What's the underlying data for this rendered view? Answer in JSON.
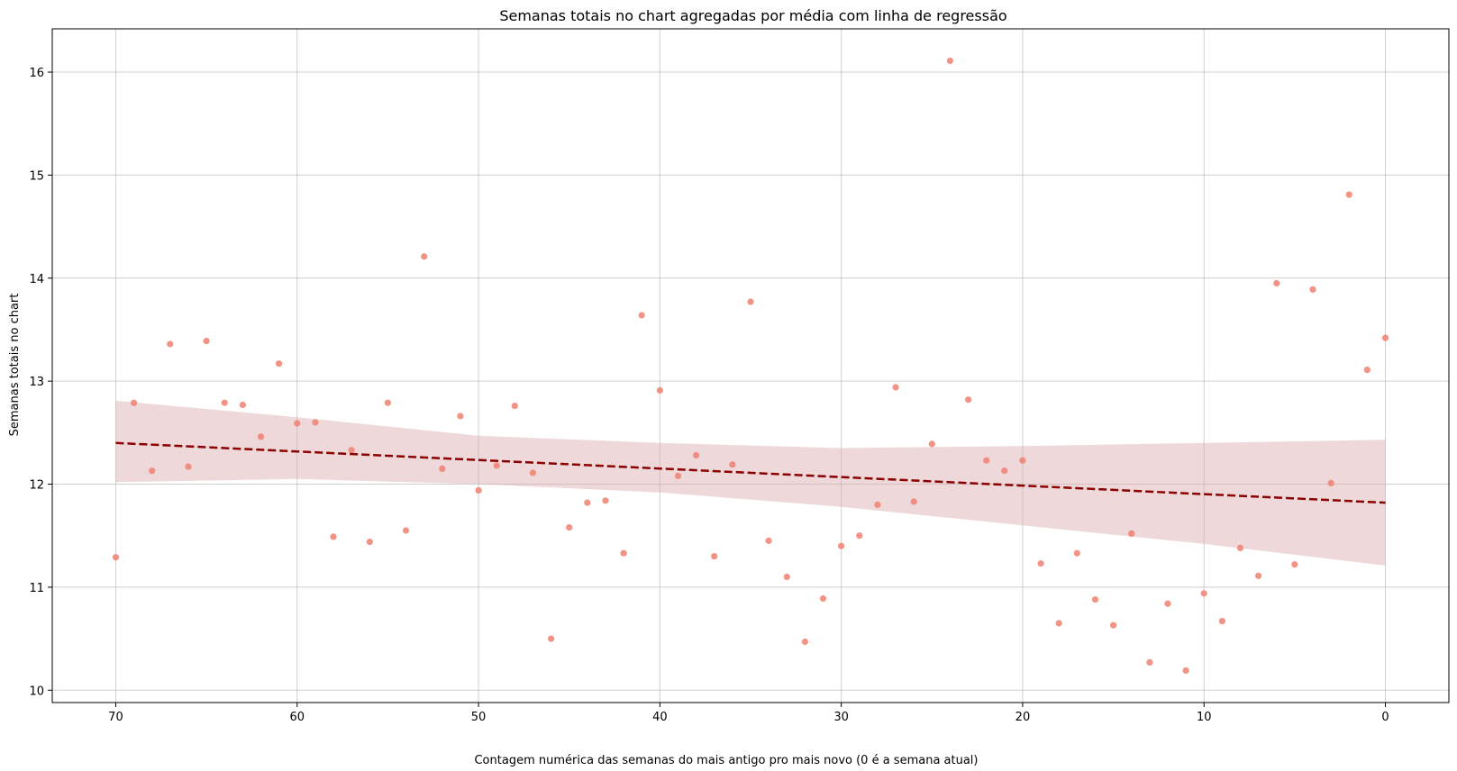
{
  "chart_data": {
    "type": "scatter",
    "title": "Semanas totais no chart agregadas por média com linha de regressão",
    "xlabel": "Contagem numérica das semanas do mais antigo pro mais novo (0 é a semana atual)",
    "ylabel": "Semanas totais no chart",
    "xlim": [
      73.5,
      -3.5
    ],
    "ylim": [
      9.88,
      16.42
    ],
    "x_reversed": true,
    "grid": true,
    "xticks": [
      70,
      60,
      50,
      40,
      30,
      20,
      10,
      0
    ],
    "yticks": [
      10,
      11,
      12,
      13,
      14,
      15,
      16
    ],
    "colors": {
      "points": "#f08070",
      "regression_line": "#8b0000",
      "confidence_band": "#d9a8ac"
    },
    "series": [
      {
        "kind": "points",
        "x": [
          70,
          69,
          68,
          67,
          66,
          65,
          64,
          63,
          62,
          61,
          60,
          59,
          58,
          57,
          56,
          55,
          54,
          53,
          52,
          51,
          50,
          49,
          48,
          47,
          46,
          45,
          44,
          43,
          42,
          41,
          40,
          39,
          38,
          37,
          36,
          35,
          34,
          33,
          32,
          31,
          30,
          29,
          28,
          27,
          26,
          25,
          24,
          23,
          22,
          21,
          20,
          19,
          18,
          17,
          16,
          15,
          14,
          13,
          12,
          11,
          10,
          9,
          8,
          7,
          6,
          5,
          4,
          3,
          2,
          1,
          0
        ],
        "y": [
          11.29,
          12.79,
          12.13,
          13.36,
          12.17,
          13.39,
          12.79,
          12.77,
          12.46,
          13.17,
          12.59,
          12.6,
          11.49,
          12.33,
          11.44,
          12.79,
          11.55,
          14.21,
          12.15,
          12.66,
          11.94,
          12.18,
          12.76,
          12.11,
          10.5,
          11.58,
          11.82,
          11.84,
          11.33,
          13.64,
          12.91,
          12.08,
          12.28,
          11.3,
          12.19,
          13.77,
          11.45,
          11.1,
          10.47,
          10.89,
          11.4,
          11.5,
          11.8,
          12.94,
          11.83,
          12.39,
          16.11,
          12.82,
          12.23,
          12.13,
          12.23,
          11.23,
          10.65,
          11.33,
          10.88,
          10.63,
          11.52,
          10.27,
          10.84,
          10.19,
          10.94,
          10.67,
          11.38,
          11.11,
          13.95,
          11.22,
          13.89,
          12.01,
          14.81,
          13.11,
          13.42
        ]
      },
      {
        "kind": "regression",
        "x": [
          70,
          0
        ],
        "y": [
          12.4,
          11.82
        ]
      },
      {
        "kind": "confidence_band",
        "x": [
          70,
          60,
          50,
          40,
          30,
          20,
          10,
          0
        ],
        "upper": [
          12.81,
          12.65,
          12.47,
          12.4,
          12.35,
          12.37,
          12.4,
          12.43
        ],
        "lower": [
          12.02,
          12.05,
          12.0,
          11.92,
          11.78,
          11.6,
          11.42,
          11.21
        ]
      }
    ]
  }
}
